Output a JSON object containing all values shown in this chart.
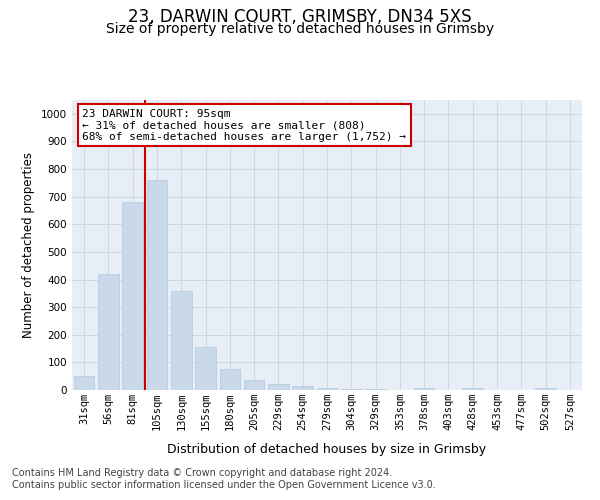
{
  "title": "23, DARWIN COURT, GRIMSBY, DN34 5XS",
  "subtitle": "Size of property relative to detached houses in Grimsby",
  "xlabel": "Distribution of detached houses by size in Grimsby",
  "ylabel": "Number of detached properties",
  "categories": [
    "31sqm",
    "56sqm",
    "81sqm",
    "105sqm",
    "130sqm",
    "155sqm",
    "180sqm",
    "205sqm",
    "229sqm",
    "254sqm",
    "279sqm",
    "304sqm",
    "329sqm",
    "353sqm",
    "378sqm",
    "403sqm",
    "428sqm",
    "453sqm",
    "477sqm",
    "502sqm",
    "527sqm"
  ],
  "values": [
    50,
    420,
    680,
    760,
    360,
    155,
    75,
    37,
    22,
    15,
    8,
    5,
    5,
    0,
    8,
    0,
    8,
    0,
    0,
    8,
    0
  ],
  "bar_color": "#c9d9ea",
  "bar_edge_color": "#b0c8dc",
  "vline_color": "#cc0000",
  "vline_pos": 2.5,
  "annotation_text": "23 DARWIN COURT: 95sqm\n← 31% of detached houses are smaller (808)\n68% of semi-detached houses are larger (1,752) →",
  "annotation_box_color": "#cc0000",
  "ylim": [
    0,
    1050
  ],
  "yticks": [
    0,
    100,
    200,
    300,
    400,
    500,
    600,
    700,
    800,
    900,
    1000
  ],
  "grid_color": "#ccd8e8",
  "background_color": "#e8eef6",
  "footer_line1": "Contains HM Land Registry data © Crown copyright and database right 2024.",
  "footer_line2": "Contains public sector information licensed under the Open Government Licence v3.0.",
  "title_fontsize": 12,
  "subtitle_fontsize": 10,
  "xlabel_fontsize": 9,
  "ylabel_fontsize": 8.5,
  "tick_fontsize": 7.5,
  "annotation_fontsize": 8,
  "footer_fontsize": 7
}
